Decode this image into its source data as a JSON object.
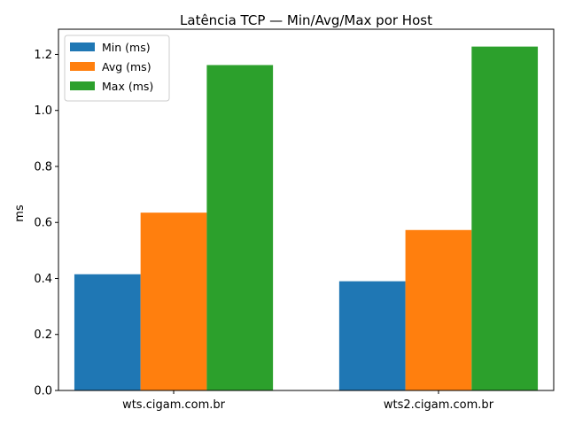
{
  "chart_data": {
    "type": "bar",
    "title": "Latência TCP — Min/Avg/Max por Host",
    "xlabel": "",
    "ylabel": "ms",
    "categories": [
      "wts.cigam.com.br",
      "wts2.cigam.com.br"
    ],
    "series": [
      {
        "name": "Min (ms)",
        "color": "#1f77b4",
        "values": [
          0.415,
          0.39
        ]
      },
      {
        "name": "Avg (ms)",
        "color": "#ff7f0e",
        "values": [
          0.635,
          0.573
        ]
      },
      {
        "name": "Max (ms)",
        "color": "#2ca02c",
        "values": [
          1.162,
          1.228
        ]
      }
    ],
    "ylim": [
      0,
      1.29
    ],
    "yticks": [
      "0.0",
      "0.2",
      "0.4",
      "0.6",
      "0.8",
      "1.0",
      "1.2"
    ],
    "grid": false,
    "legend_position": "top-left"
  }
}
